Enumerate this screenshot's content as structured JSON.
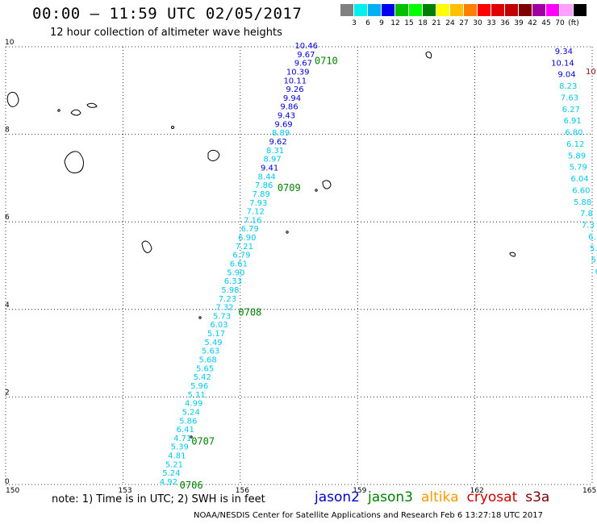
{
  "header": {
    "title": "00:00 – 11:59 UTC 02/05/2017",
    "subtitle": "12 hour collection of altimeter wave heights"
  },
  "colorbar": {
    "colors": [
      "#808080",
      "#00f0f0",
      "#00b0f0",
      "#0000f0",
      "#00c000",
      "#00ff00",
      "#008000",
      "#ffff00",
      "#ffc000",
      "#ff8000",
      "#ff0000",
      "#e00000",
      "#c00000",
      "#800000",
      "#a000a0",
      "#ff00ff",
      "#ffa0ff",
      "#000000"
    ],
    "labels": [
      "3",
      "6",
      "9",
      "12",
      "15",
      "18",
      "21",
      "24",
      "27",
      "30",
      "33",
      "36",
      "39",
      "42",
      "45",
      "70",
      "(ft)"
    ]
  },
  "map": {
    "x_ticks": [
      "150",
      "153",
      "156",
      "159",
      "162",
      "165"
    ],
    "y_ticks": [
      "0",
      "2",
      "4",
      "6",
      "8",
      "10"
    ],
    "x_range": [
      150,
      165
    ],
    "y_range": [
      0,
      10
    ],
    "gridlines": "dotted"
  },
  "track_main": {
    "pass_labels": [
      {
        "text": "0710",
        "lon": 157.9,
        "lat": 9.7
      },
      {
        "text": "0709",
        "lon": 156.95,
        "lat": 6.8
      },
      {
        "text": "0708",
        "lon": 155.95,
        "lat": 3.95
      },
      {
        "text": "0707",
        "lon": 154.75,
        "lat": 1.0
      },
      {
        "text": "0706",
        "lon": 154.45,
        "lat": 0.0
      }
    ],
    "values": [
      "10.46",
      "9.67",
      "9.67",
      "10.39",
      "10.11",
      "9.26",
      "9.94",
      "9.86",
      "9.43",
      "9.69",
      "8.89",
      "9.62",
      "8.31",
      "8.97",
      "9.41",
      "8.44",
      "7.86",
      "7.89",
      "7.93",
      "7.12",
      "7.16",
      "6.79",
      "6.90",
      "7.21",
      "6.79",
      "6.61",
      "5.90",
      "6.33",
      "5.98",
      "7.23",
      "7.32",
      "5.73",
      "6.03",
      "5.17",
      "5.49",
      "5.63",
      "5.68",
      "5.65",
      "5.42",
      "5.96",
      "5.11",
      "4.99",
      "5.24",
      "5.86",
      "6.41",
      "4.71",
      "5.39",
      "4.81",
      "5.21",
      "5.24",
      "4.92"
    ]
  },
  "track_east": {
    "values": [
      "9.34",
      "10.14",
      "9.04",
      "8.23",
      "7.63",
      "6.27",
      "6.91",
      "6.80",
      "6.12",
      "5.89",
      "5.79",
      "6.04",
      "6.60",
      "5.88",
      "7.8",
      "7.3",
      "6.",
      "5.",
      "5.",
      "6"
    ],
    "edge_label": "10"
  },
  "footer": {
    "note": "note: 1) Time is in UTC; 2) SWH is in feet",
    "legend": [
      {
        "name": "jason2",
        "color": "#0000cc"
      },
      {
        "name": "jason3",
        "color": "#008000"
      },
      {
        "name": "altika",
        "color": "#ff9900"
      },
      {
        "name": "cryosat",
        "color": "#cc0000"
      },
      {
        "name": "s3a",
        "color": "#800000"
      }
    ],
    "credit": "NOAA/NESDIS Center for Satellite Applications and Research    Feb  6 13:27:18 UTC 2017"
  }
}
